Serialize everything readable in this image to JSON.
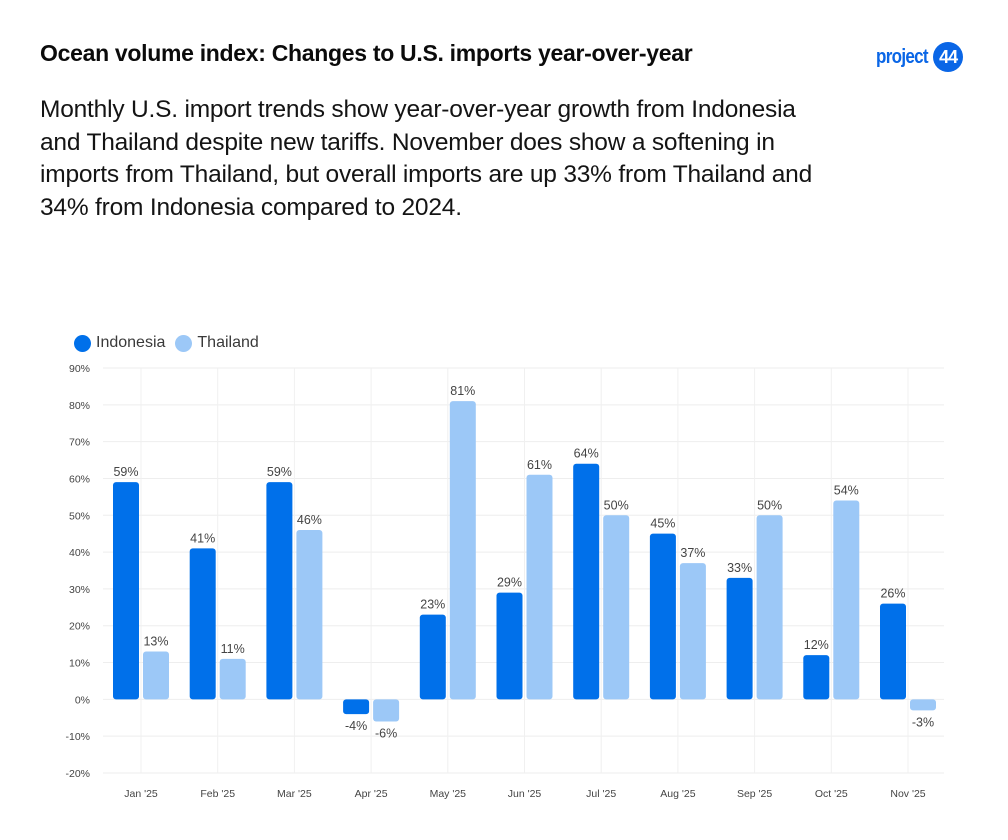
{
  "header": {
    "title": "Ocean volume index: Changes to U.S. imports year-over-year",
    "logo_text": "project",
    "logo_badge": "44",
    "brand_color": "#0a66e6"
  },
  "description": "Monthly U.S. import trends show year-over-year growth from Indonesia and Thailand despite new tariffs. November does show a softening in imports from Thailand, but overall imports are up 33% from Thailand and 34% from Indonesia compared to 2024.",
  "legend": [
    {
      "name": "Indonesia",
      "color": "#0070ea"
    },
    {
      "name": "Thailand",
      "color": "#9cc8f7"
    }
  ],
  "chart_data": {
    "type": "bar",
    "title": "Ocean volume index: Changes to U.S. imports year-over-year",
    "xlabel": "",
    "ylabel": "",
    "categories": [
      "Jan '25",
      "Feb '25",
      "Mar '25",
      "Apr '25",
      "May '25",
      "Jun '25",
      "Jul '25",
      "Aug '25",
      "Sep '25",
      "Oct '25",
      "Nov '25"
    ],
    "series": [
      {
        "name": "Indonesia",
        "color": "#0070ea",
        "values": [
          59,
          41,
          59,
          -4,
          23,
          29,
          64,
          45,
          33,
          12,
          26
        ]
      },
      {
        "name": "Thailand",
        "color": "#9cc8f7",
        "values": [
          13,
          11,
          46,
          -6,
          81,
          61,
          50,
          37,
          50,
          54,
          -3
        ]
      }
    ],
    "ylim": [
      -20,
      90
    ],
    "yticks": [
      -20,
      -10,
      0,
      10,
      20,
      30,
      40,
      50,
      60,
      70,
      80,
      90
    ],
    "ytick_format": "percent",
    "data_label_format": "percent",
    "grid": true,
    "legend_position": "top-left"
  }
}
